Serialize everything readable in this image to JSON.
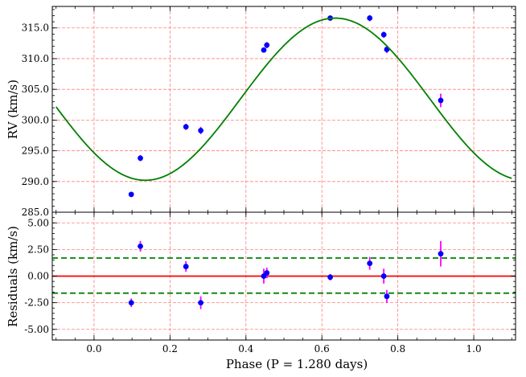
{
  "chart_data": [
    {
      "panel": "top",
      "type": "scatter",
      "xlabel": "Phase (P = 1.280 days)",
      "ylabel": "RV (km/s)",
      "xlim": [
        -0.11,
        1.11
      ],
      "ylim": [
        285.0,
        318.5
      ],
      "grid": true,
      "yticks": [
        "285.0",
        "290.0",
        "295.0",
        "300.0",
        "305.0",
        "310.0",
        "315.0"
      ],
      "series": [
        {
          "kind": "points",
          "color": "#0000ff",
          "error_color": "#ff00ff",
          "x": [
            0.098,
            0.122,
            0.242,
            0.281,
            0.447,
            0.455,
            0.622,
            0.726,
            0.763,
            0.771,
            0.913
          ],
          "y": [
            287.9,
            293.8,
            298.9,
            298.3,
            311.4,
            312.2,
            316.6,
            316.6,
            313.9,
            311.5,
            303.2
          ],
          "err": [
            0.4,
            0.5,
            0.5,
            0.6,
            0.4,
            0.5,
            0.4,
            0.5,
            0.5,
            0.6,
            1.1
          ]
        },
        {
          "kind": "model",
          "color": "#008000",
          "gamma": 303.4,
          "amplitude": 13.2,
          "phase_peak": 0.635,
          "x_range": [
            -0.1,
            1.1
          ]
        }
      ]
    },
    {
      "panel": "bottom",
      "type": "scatter",
      "xlabel": "Phase (P = 1.280 days)",
      "ylabel": "Residuals (km/s)",
      "xlim": [
        -0.11,
        1.11
      ],
      "ylim": [
        -6.0,
        6.0
      ],
      "grid": true,
      "xticks": [
        "0.0",
        "0.2",
        "0.4",
        "0.6",
        "0.8",
        "1.0"
      ],
      "yticks": [
        "-5.00",
        "-2.50",
        "0.00",
        "2.50",
        "5.00"
      ],
      "series": [
        {
          "kind": "points",
          "color": "#0000ff",
          "error_color": "#ff00ff",
          "x": [
            0.098,
            0.122,
            0.242,
            0.281,
            0.447,
            0.455,
            0.622,
            0.726,
            0.763,
            0.771,
            0.913
          ],
          "y": [
            -2.5,
            2.8,
            0.9,
            -2.5,
            0.0,
            0.3,
            -0.1,
            1.2,
            0.0,
            -1.9,
            2.1
          ],
          "err": [
            0.4,
            0.5,
            0.5,
            0.6,
            0.7,
            0.5,
            0.3,
            0.6,
            0.7,
            0.6,
            1.2
          ]
        }
      ],
      "reference_lines": [
        {
          "y": 0.0,
          "color": "#ff0000",
          "style": "solid"
        },
        {
          "y": 1.7,
          "color": "#008000",
          "style": "dashed"
        },
        {
          "y": -1.6,
          "color": "#008000",
          "style": "dashed"
        }
      ]
    }
  ]
}
